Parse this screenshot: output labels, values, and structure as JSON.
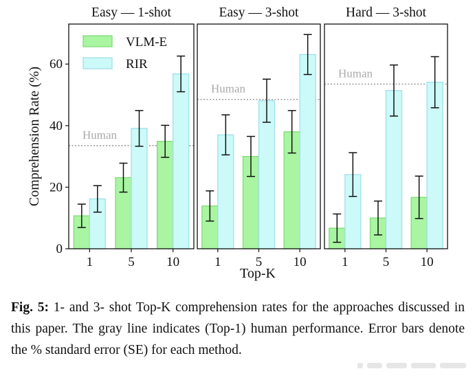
{
  "chart_data": {
    "type": "bar",
    "ylabel": "Comprehension Rate (%)",
    "xlabel": "Top-K",
    "ylim": [
      0,
      73
    ],
    "yticks": [
      0,
      20,
      40,
      60
    ],
    "grid": false,
    "legend": {
      "position": "top-left",
      "entries": [
        "VLM-E",
        "RIR"
      ]
    },
    "series_colors": {
      "VLM-E": "#a9f5a2",
      "RIR": "#ccfaf8"
    },
    "series_edge_colors": {
      "VLM-E": "#7fdc77",
      "RIR": "#9fdfe8"
    },
    "human_line_color": "#888888",
    "panels": [
      {
        "title": "Easy — 1-shot",
        "categories": [
          "1",
          "5",
          "10"
        ],
        "human": 33.5,
        "human_label": "Human",
        "series": [
          {
            "name": "VLM-E",
            "values": [
              10.7,
              23.1,
              34.9
            ],
            "errors": [
              3.8,
              4.7,
              5.2
            ]
          },
          {
            "name": "RIR",
            "values": [
              16.2,
              39.1,
              56.8
            ],
            "errors": [
              4.3,
              5.8,
              5.8
            ]
          }
        ]
      },
      {
        "title": "Easy — 3-shot",
        "categories": [
          "1",
          "5",
          "10"
        ],
        "human": 48.5,
        "human_label": "Human",
        "series": [
          {
            "name": "VLM-E",
            "values": [
              13.9,
              30.0,
              38.0
            ],
            "errors": [
              4.9,
              6.5,
              6.9
            ]
          },
          {
            "name": "RIR",
            "values": [
              37.0,
              48.1,
              63.1
            ],
            "errors": [
              6.5,
              7.0,
              6.5
            ]
          }
        ]
      },
      {
        "title": "Hard — 3-shot",
        "categories": [
          "1",
          "5",
          "10"
        ],
        "human": 53.5,
        "human_label": "Human",
        "series": [
          {
            "name": "VLM-E",
            "values": [
              6.7,
              10.0,
              16.7
            ],
            "errors": [
              4.6,
              5.5,
              6.9
            ]
          },
          {
            "name": "RIR",
            "values": [
              24.1,
              51.4,
              54.1
            ],
            "errors": [
              7.1,
              8.3,
              8.3
            ]
          }
        ]
      }
    ]
  },
  "caption": {
    "label": "Fig. 5:",
    "text": " 1- and 3- shot Top-K comprehension rates for the approaches discussed in this paper. The gray line indicates (Top-1) human performance. Error bars denote the % standard error (SE) for each method."
  }
}
